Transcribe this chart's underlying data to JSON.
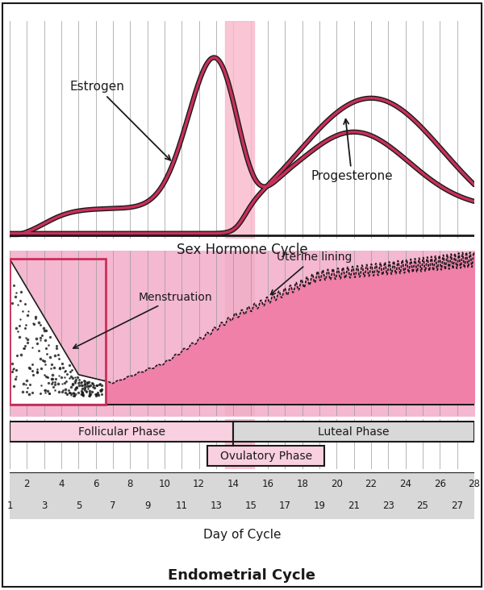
{
  "bg_color": "#ffffff",
  "pink_light": "#f9b8cc",
  "pink_mid": "#e8789a",
  "pink_dark": "#c8305a",
  "pink_fill": "#f080a8",
  "pink_bg": "#f4b8d0",
  "pink_box": "#f9d0e0",
  "gray_light": "#d8d8d8",
  "gray_mid": "#999999",
  "dark": "#1a1a1a",
  "ovulation_pink": "#f0b0c8",
  "title_hormone": "Sex Hormone Cycle",
  "title_endometrial": "Endometrial Cycle",
  "label_estrogen": "Estrogen",
  "label_progesterone": "Progesterone",
  "label_uterine": "Uterine lining",
  "label_menstruation": "Menstruation",
  "label_follicular": "Follicular Phase",
  "label_luteal": "Luteal Phase",
  "label_ovulatory": "Ovulatory Phase",
  "label_day_of_cycle": "Day of Cycle",
  "days_even": [
    2,
    4,
    6,
    8,
    10,
    12,
    14,
    16,
    18,
    20,
    22,
    24,
    26,
    28
  ],
  "days_odd": [
    1,
    3,
    5,
    7,
    9,
    11,
    13,
    15,
    17,
    19,
    21,
    23,
    25,
    27
  ]
}
